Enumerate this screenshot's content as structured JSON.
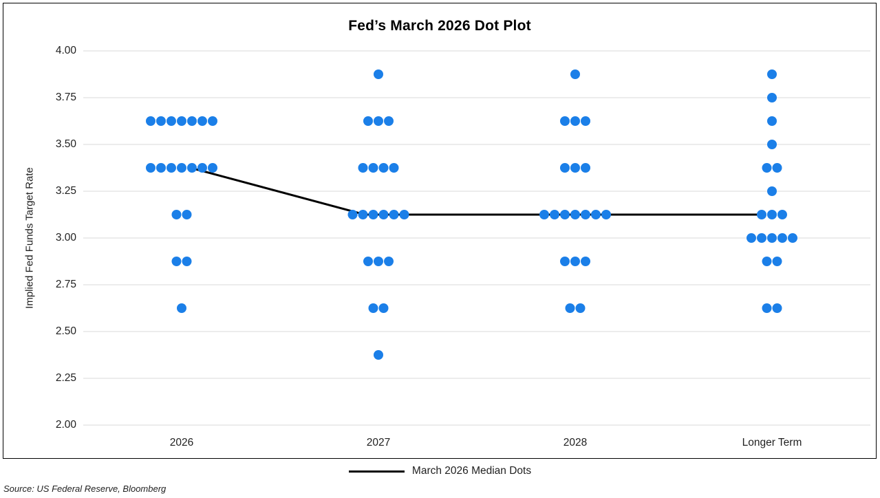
{
  "title": "Fed’s March 2026 Dot Plot",
  "y_axis": {
    "label": "Implied Fed Funds Target Rate",
    "ticks": [
      "4.00",
      "3.75",
      "3.50",
      "3.25",
      "3.00",
      "2.75",
      "2.50",
      "2.25",
      "2.00"
    ]
  },
  "x_axis": {
    "categories": [
      "2026",
      "2027",
      "2028",
      "Longer Term"
    ]
  },
  "legend": {
    "label": "March 2026 Median Dots"
  },
  "source": "Source: US Federal Reserve, Bloomberg",
  "colors": {
    "dot": "#1B7FE8",
    "gridline": "#D9D9D9",
    "median_line": "#000000",
    "border": "#000000",
    "text": "#1f1f1f"
  },
  "chart_data": {
    "type": "scatter",
    "title": "Fed’s March 2026 Dot Plot",
    "xlabel": "",
    "ylabel": "Implied Fed Funds Target Rate",
    "ylim": [
      2.0,
      4.0
    ],
    "ytick_step": 0.25,
    "grid": "horizontal",
    "legend_position": "bottom",
    "categories": [
      "2026",
      "2027",
      "2028",
      "Longer Term"
    ],
    "dots": [
      {
        "category": "2026",
        "points": [
          {
            "rate": 3.625,
            "count": 7
          },
          {
            "rate": 3.375,
            "count": 7
          },
          {
            "rate": 3.125,
            "count": 2
          },
          {
            "rate": 2.875,
            "count": 2
          },
          {
            "rate": 2.625,
            "count": 1
          }
        ]
      },
      {
        "category": "2027",
        "points": [
          {
            "rate": 3.875,
            "count": 1
          },
          {
            "rate": 3.625,
            "count": 3
          },
          {
            "rate": 3.375,
            "count": 4
          },
          {
            "rate": 3.125,
            "count": 6
          },
          {
            "rate": 2.875,
            "count": 3
          },
          {
            "rate": 2.625,
            "count": 2
          },
          {
            "rate": 2.375,
            "count": 1
          }
        ]
      },
      {
        "category": "2028",
        "points": [
          {
            "rate": 3.875,
            "count": 1
          },
          {
            "rate": 3.625,
            "count": 3
          },
          {
            "rate": 3.375,
            "count": 3
          },
          {
            "rate": 3.125,
            "count": 7
          },
          {
            "rate": 2.875,
            "count": 3
          },
          {
            "rate": 2.625,
            "count": 2
          }
        ]
      },
      {
        "category": "Longer Term",
        "points": [
          {
            "rate": 3.875,
            "count": 1
          },
          {
            "rate": 3.75,
            "count": 1
          },
          {
            "rate": 3.625,
            "count": 1
          },
          {
            "rate": 3.5,
            "count": 1
          },
          {
            "rate": 3.375,
            "count": 2
          },
          {
            "rate": 3.25,
            "count": 1
          },
          {
            "rate": 3.125,
            "count": 3
          },
          {
            "rate": 3.0,
            "count": 5
          },
          {
            "rate": 2.875,
            "count": 2
          },
          {
            "rate": 2.625,
            "count": 2
          }
        ]
      }
    ],
    "median_series": {
      "name": "March 2026 Median Dots",
      "values": [
        3.375,
        3.125,
        3.125,
        3.125
      ]
    }
  }
}
